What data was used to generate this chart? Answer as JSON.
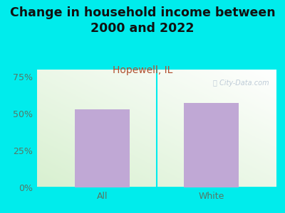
{
  "categories": [
    "All",
    "White"
  ],
  "values": [
    53.0,
    57.0
  ],
  "bar_color": "#c0a8d5",
  "title": "Change in household income between\n2000 and 2022",
  "subtitle": "Hopewell, IL",
  "subtitle_color": "#b05030",
  "title_fontsize": 12.5,
  "subtitle_fontsize": 10,
  "ylim": [
    0,
    80
  ],
  "yticks": [
    0,
    25,
    50,
    75
  ],
  "ytick_labels": [
    "0%",
    "25%",
    "50%",
    "75%"
  ],
  "figure_bg_color": "#00ecec",
  "watermark_text": "ⓘ City-Data.com",
  "bar_width": 0.5,
  "tick_label_color": "#557766",
  "tick_label_fontsize": 9,
  "title_color": "#111111"
}
